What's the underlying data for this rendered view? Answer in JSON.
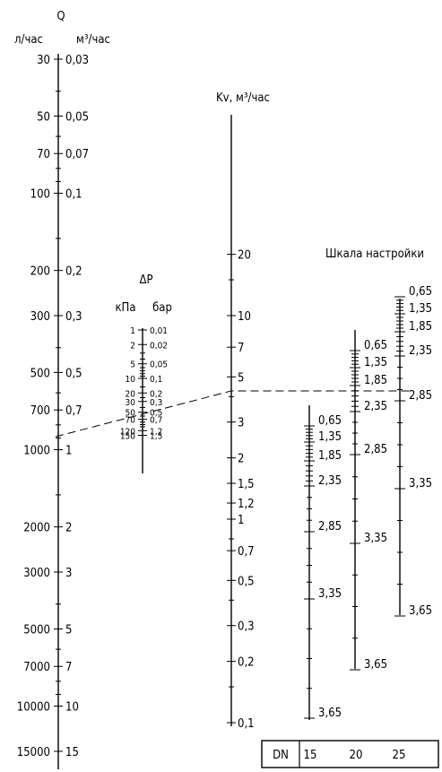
{
  "q_scale": {
    "title": "Q",
    "unit_left": "л/час",
    "unit_right": "м³/час",
    "labels": [
      {
        "lph": "30",
        "m3h": "0,03"
      },
      {
        "lph": "50",
        "m3h": "0,05"
      },
      {
        "lph": "70",
        "m3h": "0,07"
      },
      {
        "lph": "100",
        "m3h": "0,1"
      },
      {
        "lph": "200",
        "m3h": "0,2"
      },
      {
        "lph": "300",
        "m3h": "0,3"
      },
      {
        "lph": "500",
        "m3h": "0,5"
      },
      {
        "lph": "700",
        "m3h": "0,7"
      },
      {
        "lph": "1000",
        "m3h": "1"
      },
      {
        "lph": "2000",
        "m3h": "2"
      },
      {
        "lph": "3000",
        "m3h": "3"
      },
      {
        "lph": "5000",
        "m3h": "5"
      },
      {
        "lph": "7000",
        "m3h": "7"
      },
      {
        "lph": "10000",
        "m3h": "10"
      },
      {
        "lph": "15000",
        "m3h": "15"
      }
    ]
  },
  "dp_scale": {
    "title": "ΔP",
    "unit_left": "кПа",
    "unit_right": "бар",
    "labels": [
      {
        "kpa": "1",
        "bar": "0,01"
      },
      {
        "kpa": "2",
        "bar": "0,02"
      },
      {
        "kpa": "5",
        "bar": "0,05"
      },
      {
        "kpa": "10",
        "bar": "0,1"
      },
      {
        "kpa": "20",
        "bar": "0,2"
      },
      {
        "kpa": "30",
        "bar": "0,3"
      },
      {
        "kpa": "50",
        "bar": "0,5"
      },
      {
        "kpa": "70",
        "bar": "0,7"
      },
      {
        "kpa": "120",
        "bar": "1,2"
      },
      {
        "kpa": "150",
        "bar": "1,5"
      }
    ]
  },
  "kv_scale": {
    "title": "Kv, м³/час",
    "labels": [
      "20",
      "10",
      "7",
      "5",
      "3",
      "2",
      "1,5",
      "1,2",
      "1",
      "0,7",
      "0,5",
      "0,3",
      "0,2",
      "0,1"
    ]
  },
  "setting_scale": {
    "title": "Шкала настройки",
    "settings": [
      "0,65",
      "1,35",
      "1,85",
      "2,35",
      "2,85",
      "3,35",
      "3,65"
    ]
  },
  "dn_row": {
    "label": "DN",
    "sizes": [
      "15",
      "20",
      "25"
    ]
  }
}
